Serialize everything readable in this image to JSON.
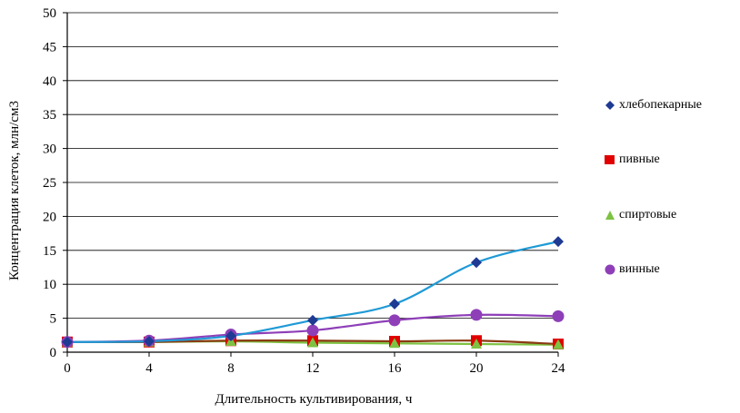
{
  "chart_data": {
    "type": "line",
    "title": "",
    "xlabel": "Длительность культивирования, ч",
    "ylabel": "Концентрация клеток, млн/см3",
    "x": [
      0,
      4,
      8,
      12,
      16,
      20,
      24
    ],
    "xlim": [
      0,
      24
    ],
    "ylim": [
      0,
      50
    ],
    "yticks": [
      0,
      5,
      10,
      15,
      20,
      25,
      30,
      35,
      40,
      45,
      50
    ],
    "xticks": [
      0,
      4,
      8,
      12,
      16,
      20,
      24
    ],
    "grid": "horizontal",
    "legend_position": "right",
    "series": [
      {
        "name": "хлебопекарные",
        "marker": "diamond",
        "color": "#1f3a93",
        "line_color": "#1f9ad6",
        "values": [
          1.5,
          1.6,
          2.4,
          4.7,
          7.1,
          13.2,
          16.3
        ]
      },
      {
        "name": "пивные",
        "marker": "square",
        "color": "#e00000",
        "line_color": "#8a3a12",
        "values": [
          1.5,
          1.5,
          1.7,
          1.7,
          1.6,
          1.7,
          1.2
        ]
      },
      {
        "name": "спиртовые",
        "marker": "triangle",
        "color": "#7dc242",
        "line_color": "#7dc242",
        "values": [
          1.5,
          1.5,
          1.6,
          1.4,
          1.3,
          1.2,
          1.1
        ]
      },
      {
        "name": "винные",
        "marker": "circle",
        "color": "#8e3fb8",
        "line_color": "#8e3fb8",
        "values": [
          1.5,
          1.7,
          2.6,
          3.2,
          4.7,
          5.5,
          5.3
        ]
      }
    ]
  }
}
